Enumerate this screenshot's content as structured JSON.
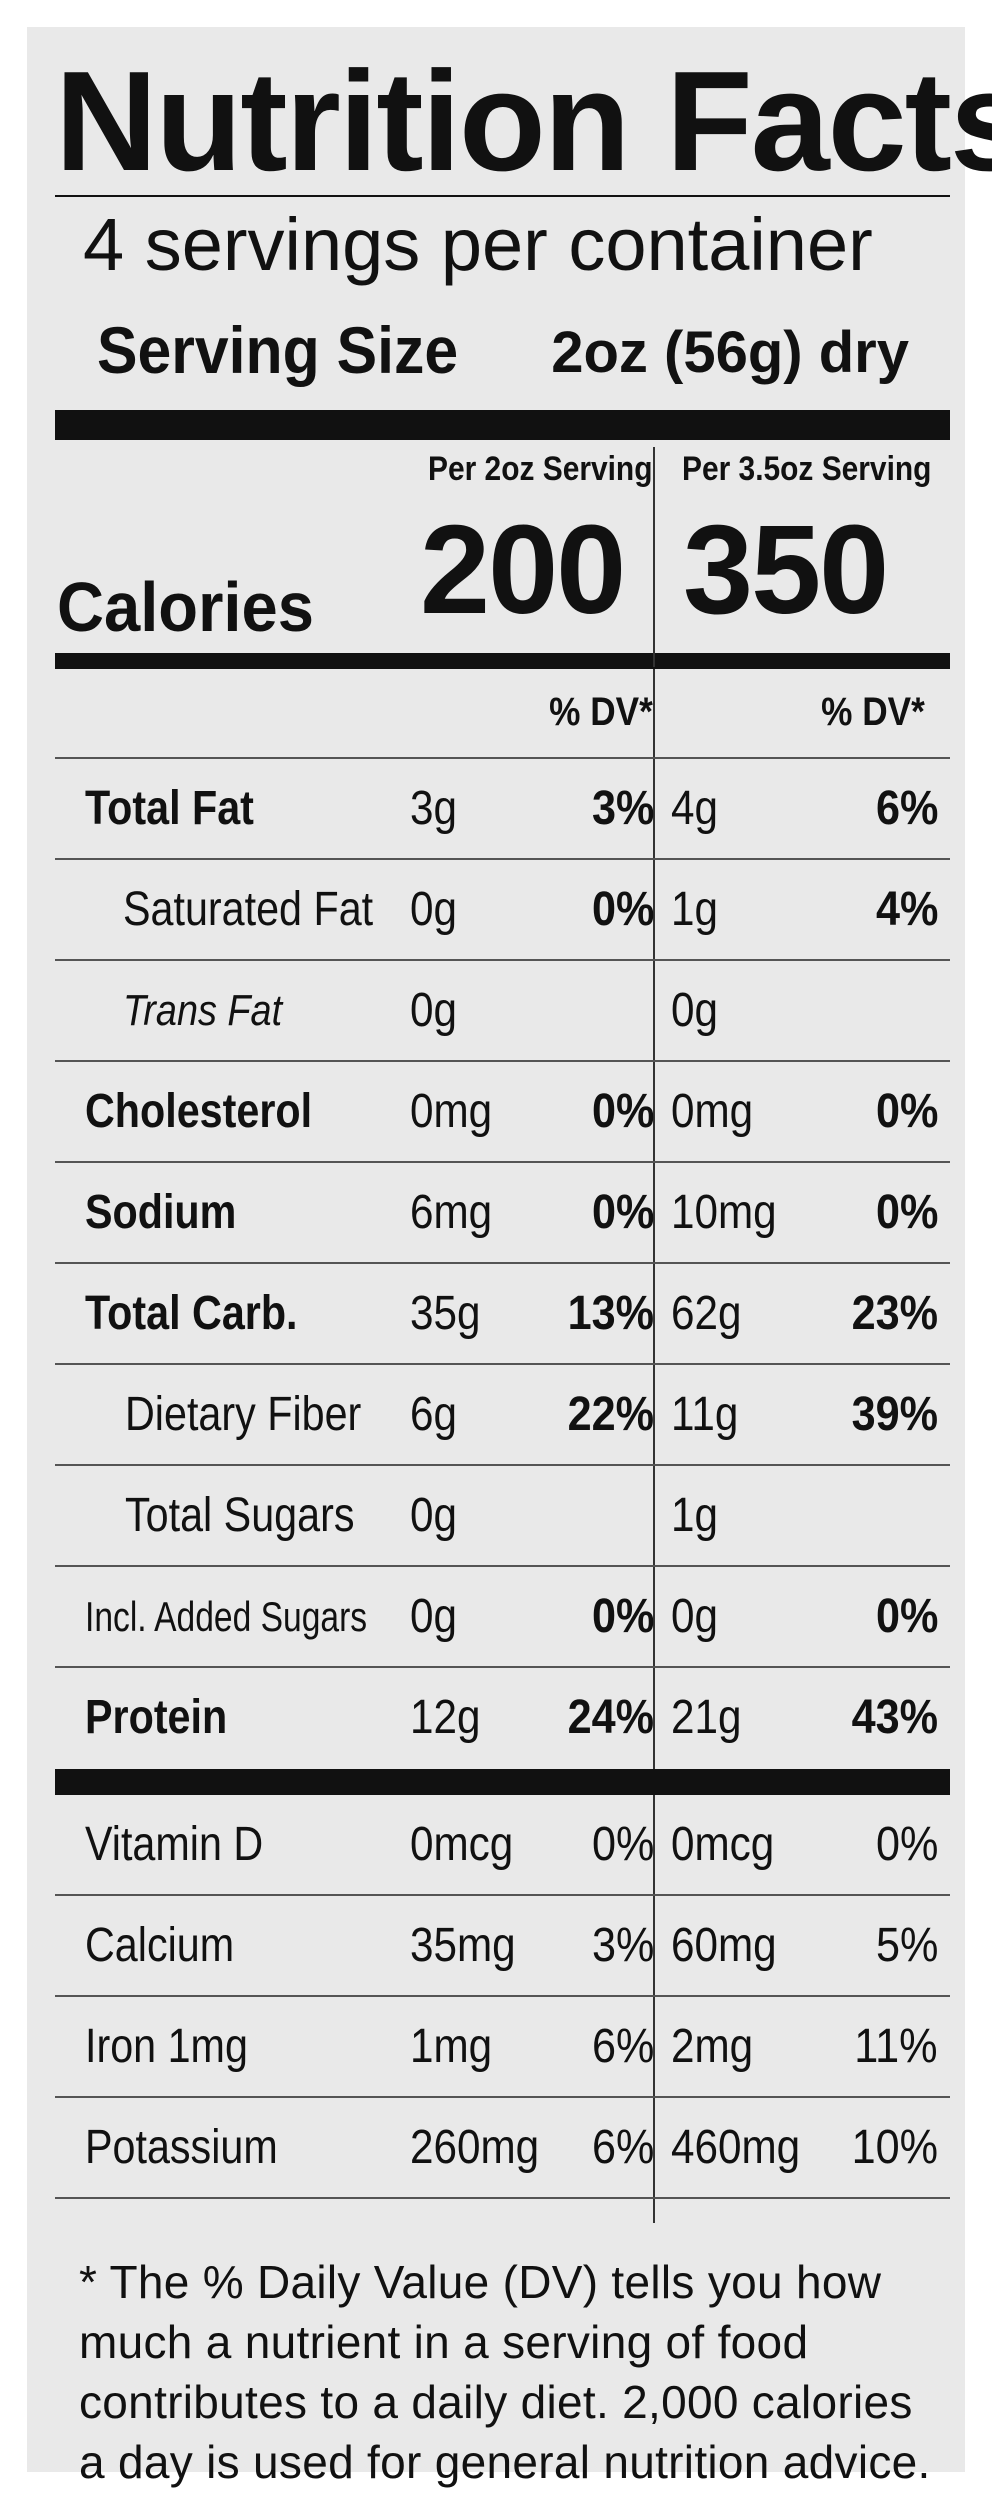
{
  "label": {
    "title": "Nutrition Facts",
    "servings": "4 servings per container",
    "serving_size_label": "Serving Size",
    "serving_size_value": "2oz (56g) dry",
    "col1_header": "Per 2oz Serving",
    "col2_header": "Per 3.5oz Serving",
    "calories_label": "Calories",
    "calories_col1": "200",
    "calories_col2": "350",
    "dv_header_col1": "% DV*",
    "dv_header_col2": "% DV*"
  },
  "nutrients": [
    {
      "name": "Total Fat",
      "amt1": "3g",
      "dv1": "3%",
      "amt2": "4g",
      "dv2": "6%"
    },
    {
      "name": "Saturated Fat",
      "amt1": "0g",
      "dv1": "0%",
      "amt2": "1g",
      "dv2": "4%"
    },
    {
      "name": "Trans Fat",
      "amt1": "0g",
      "dv1": "",
      "amt2": "0g",
      "dv2": ""
    },
    {
      "name": "Cholesterol",
      "amt1": "0mg",
      "dv1": "0%",
      "amt2": "0mg",
      "dv2": "0%"
    },
    {
      "name": "Sodium",
      "amt1": "6mg",
      "dv1": "0%",
      "amt2": "10mg",
      "dv2": "0%"
    },
    {
      "name": "Total Carb.",
      "amt1": "35g",
      "dv1": "13%",
      "amt2": "62g",
      "dv2": "23%"
    },
    {
      "name": "Dietary Fiber",
      "amt1": "6g",
      "dv1": "22%",
      "amt2": "11g",
      "dv2": "39%"
    },
    {
      "name": "Total Sugars",
      "amt1": "0g",
      "dv1": "",
      "amt2": "1g",
      "dv2": ""
    },
    {
      "name": "Incl. Added Sugars",
      "amt1": "0g",
      "dv1": "0%",
      "amt2": "0g",
      "dv2": "0%"
    },
    {
      "name": "Protein",
      "amt1": "12g",
      "dv1": "24%",
      "amt2": "21g",
      "dv2": "43%"
    }
  ],
  "vitamins": [
    {
      "name": "Vitamin D",
      "amt1": "0mcg",
      "dv1": "0%",
      "amt2": "0mcg",
      "dv2": "0%"
    },
    {
      "name": "Calcium",
      "amt1": "35mg",
      "dv1": "3%",
      "amt2": "60mg",
      "dv2": "5%"
    },
    {
      "name": "Iron 1mg",
      "amt1": "1mg",
      "dv1": "6%",
      "amt2": "2mg",
      "dv2": "11%"
    },
    {
      "name": "Potassium",
      "amt1": "260mg",
      "dv1": "6%",
      "amt2": "460mg",
      "dv2": "10%"
    }
  ],
  "footnote": "* The % Daily Value (DV) tells you how much a nutrient in a serving of food contributes to a daily diet. 2,000 calories a day is used for general nutrition advice."
}
